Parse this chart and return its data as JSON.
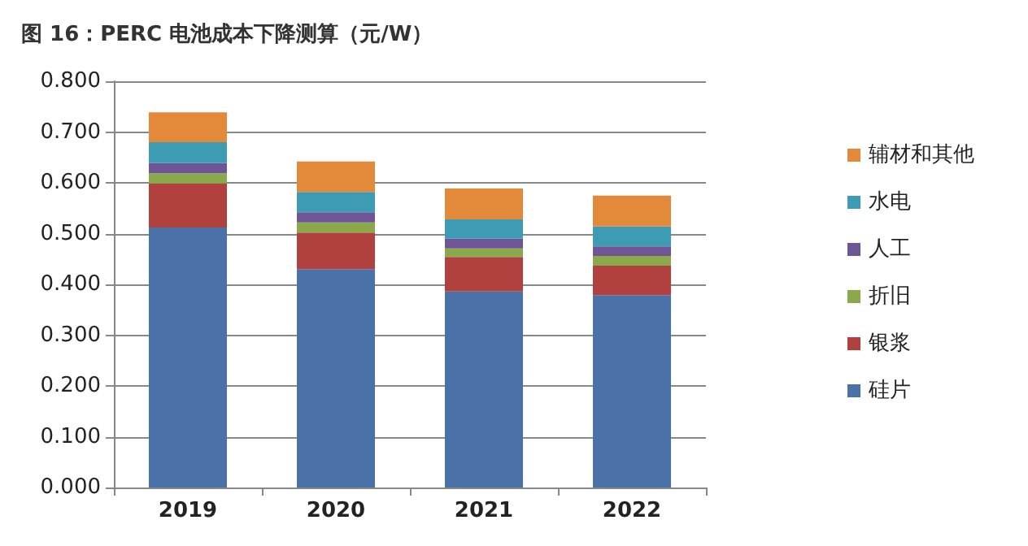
{
  "chart_data": {
    "type": "bar",
    "title": "图 16：PERC 电池成本下降测算（元/W）",
    "categories": [
      "2019",
      "2020",
      "2021",
      "2022"
    ],
    "stacked": true,
    "ylim": [
      0,
      0.8
    ],
    "yticks": [
      {
        "value": 0,
        "label": "0.000"
      },
      {
        "value": 0.1,
        "label": "0.100"
      },
      {
        "value": 0.2,
        "label": "0.200"
      },
      {
        "value": 0.3,
        "label": "0.300"
      },
      {
        "value": 0.4,
        "label": "0.400"
      },
      {
        "value": 0.5,
        "label": "0.500"
      },
      {
        "value": 0.6,
        "label": "0.600"
      },
      {
        "value": 0.7,
        "label": "0.700"
      },
      {
        "value": 0.8,
        "label": "0.800"
      }
    ],
    "grid": "y",
    "legend": "right",
    "series": [
      {
        "name": "硅片",
        "color": "#4a72a8",
        "values": [
          0.512,
          0.43,
          0.386,
          0.379
        ]
      },
      {
        "name": "银浆",
        "color": "#b0413e",
        "values": [
          0.087,
          0.072,
          0.068,
          0.058
        ]
      },
      {
        "name": "折旧",
        "color": "#8aa94a",
        "values": [
          0.02,
          0.02,
          0.017,
          0.019
        ]
      },
      {
        "name": "人工",
        "color": "#6f5596",
        "values": [
          0.02,
          0.02,
          0.019,
          0.019
        ]
      },
      {
        "name": "水电",
        "color": "#3e9bb4",
        "values": [
          0.041,
          0.04,
          0.038,
          0.039
        ]
      },
      {
        "name": "辅材和其他",
        "color": "#e3893a",
        "values": [
          0.059,
          0.06,
          0.061,
          0.061
        ]
      }
    ]
  }
}
